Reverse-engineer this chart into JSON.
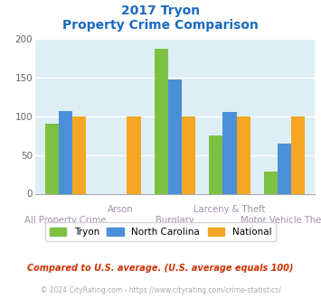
{
  "title_line1": "2017 Tryon",
  "title_line2": "Property Crime Comparison",
  "categories": [
    "All Property Crime",
    "Arson",
    "Burglary",
    "Larceny & Theft",
    "Motor Vehicle Theft"
  ],
  "tryon_values": [
    90,
    0,
    187,
    75,
    28
  ],
  "nc_values": [
    107,
    0,
    148,
    105,
    65
  ],
  "national_values": [
    100,
    100,
    100,
    100,
    100
  ],
  "tryon_color": "#7dc142",
  "nc_color": "#4a90d9",
  "national_color": "#f5a623",
  "ylim": [
    0,
    200
  ],
  "yticks": [
    0,
    50,
    100,
    150,
    200
  ],
  "background_color": "#ddeef5",
  "title_color": "#1a6abf",
  "xlabel_color": "#a090a8",
  "legend_labels": [
    "Tryon",
    "North Carolina",
    "National"
  ],
  "footnote1": "Compared to U.S. average. (U.S. average equals 100)",
  "footnote2": "© 2024 CityRating.com - https://www.cityrating.com/crime-statistics/",
  "footnote1_color": "#cc3300",
  "footnote2_color": "#aaaaaa",
  "bar_width": 0.25
}
